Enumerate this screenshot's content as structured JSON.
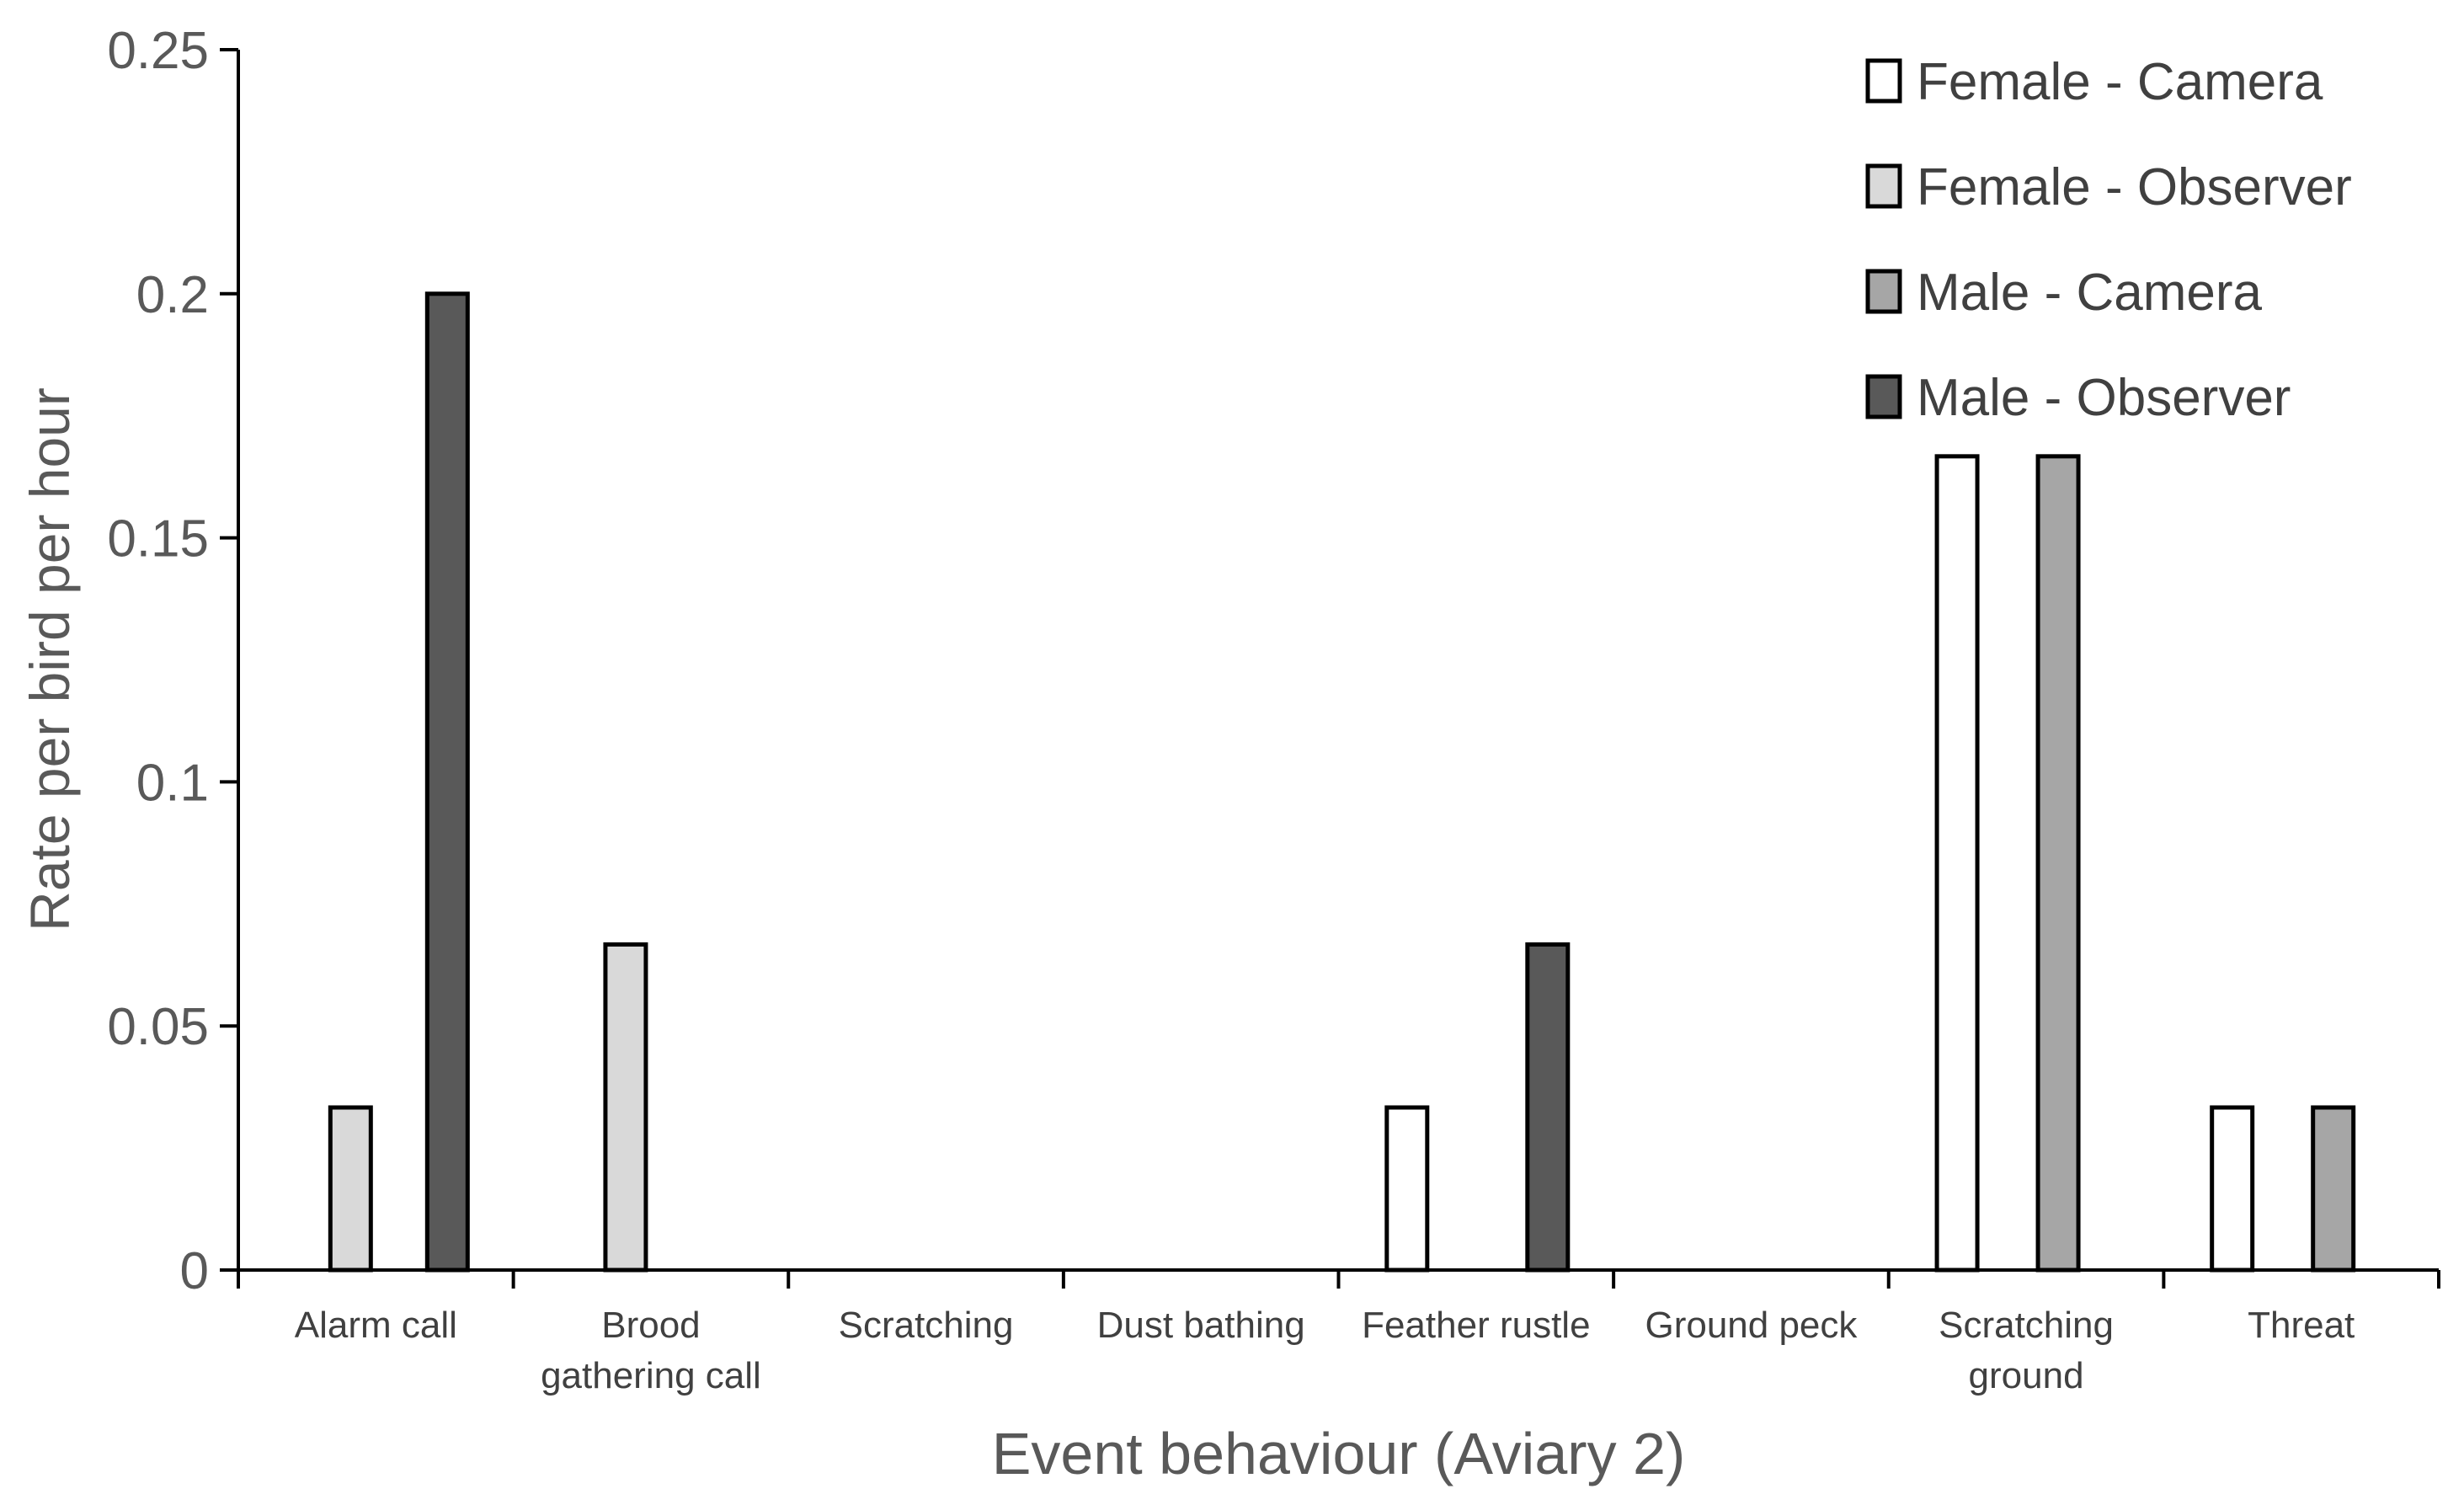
{
  "chart_data": {
    "type": "bar",
    "title": "",
    "xlabel": "Event behaviour (Aviary 2)",
    "ylabel": "Rate per bird per hour",
    "ylim": [
      0,
      0.25
    ],
    "yticks": [
      "0",
      "0.05",
      "0.1",
      "0.15",
      "0.2",
      "0.25"
    ],
    "ytick_values": [
      0,
      0.05,
      0.1,
      0.15,
      0.2,
      0.25
    ],
    "categories": [
      [
        "Alarm call"
      ],
      [
        "Brood",
        "gathering call"
      ],
      [
        "Scratching"
      ],
      [
        "Dust bathing"
      ],
      [
        "Feather rustle"
      ],
      [
        "Ground peck"
      ],
      [
        "Scratching",
        "ground"
      ],
      [
        "Threat"
      ]
    ],
    "series": [
      {
        "name": "Female - Camera",
        "color": "#ffffff",
        "values": [
          0,
          0,
          0,
          0,
          0.0333,
          0,
          0.1667,
          0.0333
        ]
      },
      {
        "name": "Female - Observer",
        "color": "#d9d9d9",
        "values": [
          0.0333,
          0.0667,
          0,
          0,
          0,
          0,
          0,
          0
        ]
      },
      {
        "name": "Male - Camera",
        "color": "#a6a6a6",
        "values": [
          0,
          0,
          0,
          0,
          0,
          0,
          0.1667,
          0.0333
        ]
      },
      {
        "name": "Male - Observer",
        "color": "#595959",
        "values": [
          0.2,
          0,
          0,
          0,
          0.0667,
          0,
          0,
          0
        ]
      }
    ],
    "legend_position": "top-right",
    "grid": false
  }
}
